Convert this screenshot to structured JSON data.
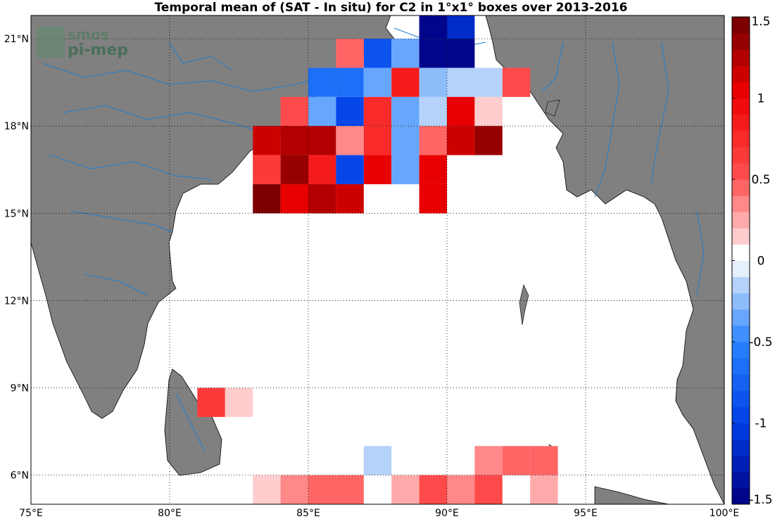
{
  "title": "Temporal mean of (SAT - In situ) for C2 in 1°x1° boxes over 2013-2016",
  "watermark": {
    "line1": "smos",
    "line2": "pi-mep"
  },
  "x_ticks": [
    {
      "v": 75,
      "label": "75°E"
    },
    {
      "v": 80,
      "label": "80°E"
    },
    {
      "v": 85,
      "label": "85°E"
    },
    {
      "v": 90,
      "label": "90°E"
    },
    {
      "v": 95,
      "label": "95°E"
    },
    {
      "v": 100,
      "label": "100°E"
    }
  ],
  "y_ticks": [
    {
      "v": 6,
      "label": "6°N"
    },
    {
      "v": 9,
      "label": "9°N"
    },
    {
      "v": 12,
      "label": "12°N"
    },
    {
      "v": 15,
      "label": "15°N"
    },
    {
      "v": 18,
      "label": "18°N"
    },
    {
      "v": 21,
      "label": "21°N"
    }
  ],
  "colorbar": {
    "min": -1.5,
    "max": 1.5,
    "levels": 30,
    "ticks": [
      {
        "v": 1.5,
        "label": "1.5"
      },
      {
        "v": 1,
        "label": "1"
      },
      {
        "v": 0.5,
        "label": "0.5"
      },
      {
        "v": 0,
        "label": "0"
      },
      {
        "v": -0.5,
        "label": "-0.5"
      },
      {
        "v": -1,
        "label": "-1"
      },
      {
        "v": -1.5,
        "label": "-1.5"
      }
    ]
  },
  "colors": {
    "land": "#808080",
    "rivers": "#1f7fd0",
    "ocean": "#ffffff"
  },
  "chart_data": {
    "type": "heatmap",
    "title": "Temporal mean of (SAT - In situ) for C2 in 1°x1° boxes over 2013-2016",
    "x_range_lon": [
      75,
      100
    ],
    "y_range_lat": [
      5,
      21.8
    ],
    "cell_size_deg": 1,
    "value_range": [
      -1.5,
      1.5
    ],
    "cells": [
      {
        "lon": 89,
        "lat": 21,
        "v": -1.5
      },
      {
        "lon": 90,
        "lat": 21,
        "v": -1.2
      },
      {
        "lon": 87,
        "lat": 20,
        "v": -0.85
      },
      {
        "lon": 88,
        "lat": 20,
        "v": -0.3
      },
      {
        "lon": 89,
        "lat": 20,
        "v": -1.5
      },
      {
        "lon": 90,
        "lat": 20,
        "v": -1.5
      },
      {
        "lon": 86,
        "lat": 20,
        "v": 0.4
      },
      {
        "lon": 85,
        "lat": 19,
        "v": -0.7
      },
      {
        "lon": 86,
        "lat": 19,
        "v": -0.7
      },
      {
        "lon": 87,
        "lat": 19,
        "v": -0.35
      },
      {
        "lon": 88,
        "lat": 19,
        "v": 0.9
      },
      {
        "lon": 89,
        "lat": 19,
        "v": -0.25
      },
      {
        "lon": 90,
        "lat": 19,
        "v": -0.15
      },
      {
        "lon": 91,
        "lat": 19,
        "v": -0.15
      },
      {
        "lon": 92,
        "lat": 19,
        "v": 0.5
      },
      {
        "lon": 84,
        "lat": 18,
        "v": 0.5
      },
      {
        "lon": 85,
        "lat": 18,
        "v": -0.3
      },
      {
        "lon": 86,
        "lat": 18,
        "v": -1.0
      },
      {
        "lon": 87,
        "lat": 18,
        "v": 0.7
      },
      {
        "lon": 88,
        "lat": 18,
        "v": -0.3
      },
      {
        "lon": 89,
        "lat": 18,
        "v": -0.1
      },
      {
        "lon": 90,
        "lat": 18,
        "v": 1.0
      },
      {
        "lon": 91,
        "lat": 18,
        "v": 0.15
      },
      {
        "lon": 83,
        "lat": 17,
        "v": 1.1
      },
      {
        "lon": 84,
        "lat": 17,
        "v": 1.25
      },
      {
        "lon": 85,
        "lat": 17,
        "v": 1.25
      },
      {
        "lon": 86,
        "lat": 17,
        "v": 0.3
      },
      {
        "lon": 87,
        "lat": 17,
        "v": 0.7
      },
      {
        "lon": 88,
        "lat": 17,
        "v": -0.3
      },
      {
        "lon": 89,
        "lat": 17,
        "v": 0.4
      },
      {
        "lon": 90,
        "lat": 17,
        "v": 1.15
      },
      {
        "lon": 91,
        "lat": 17,
        "v": 1.35
      },
      {
        "lon": 83,
        "lat": 16,
        "v": 0.65
      },
      {
        "lon": 84,
        "lat": 16,
        "v": 1.35
      },
      {
        "lon": 85,
        "lat": 16,
        "v": 0.85
      },
      {
        "lon": 86,
        "lat": 16,
        "v": -0.9
      },
      {
        "lon": 87,
        "lat": 16,
        "v": 1.05
      },
      {
        "lon": 88,
        "lat": 16,
        "v": -0.4
      },
      {
        "lon": 89,
        "lat": 16,
        "v": 1.0
      },
      {
        "lon": 83,
        "lat": 15,
        "v": 1.45
      },
      {
        "lon": 84,
        "lat": 15,
        "v": 1.0
      },
      {
        "lon": 85,
        "lat": 15,
        "v": 1.25
      },
      {
        "lon": 86,
        "lat": 15,
        "v": 1.15
      },
      {
        "lon": 89,
        "lat": 15,
        "v": 1.0
      },
      {
        "lon": 81,
        "lat": 8,
        "v": 0.6
      },
      {
        "lon": 82,
        "lat": 8,
        "v": 0.15
      },
      {
        "lon": 87,
        "lat": 6,
        "v": -0.15
      },
      {
        "lon": 91,
        "lat": 6,
        "v": 0.35
      },
      {
        "lon": 92,
        "lat": 6,
        "v": 0.4
      },
      {
        "lon": 93,
        "lat": 6,
        "v": 0.4
      },
      {
        "lon": 83,
        "lat": 5,
        "v": 0.15
      },
      {
        "lon": 84,
        "lat": 5,
        "v": 0.3
      },
      {
        "lon": 85,
        "lat": 5,
        "v": 0.45
      },
      {
        "lon": 86,
        "lat": 5,
        "v": 0.45
      },
      {
        "lon": 88,
        "lat": 5,
        "v": 0.2
      },
      {
        "lon": 89,
        "lat": 5,
        "v": 0.55
      },
      {
        "lon": 90,
        "lat": 5,
        "v": 0.35
      },
      {
        "lon": 91,
        "lat": 5,
        "v": 0.55
      },
      {
        "lon": 93,
        "lat": 5,
        "v": 0.2
      }
    ]
  }
}
